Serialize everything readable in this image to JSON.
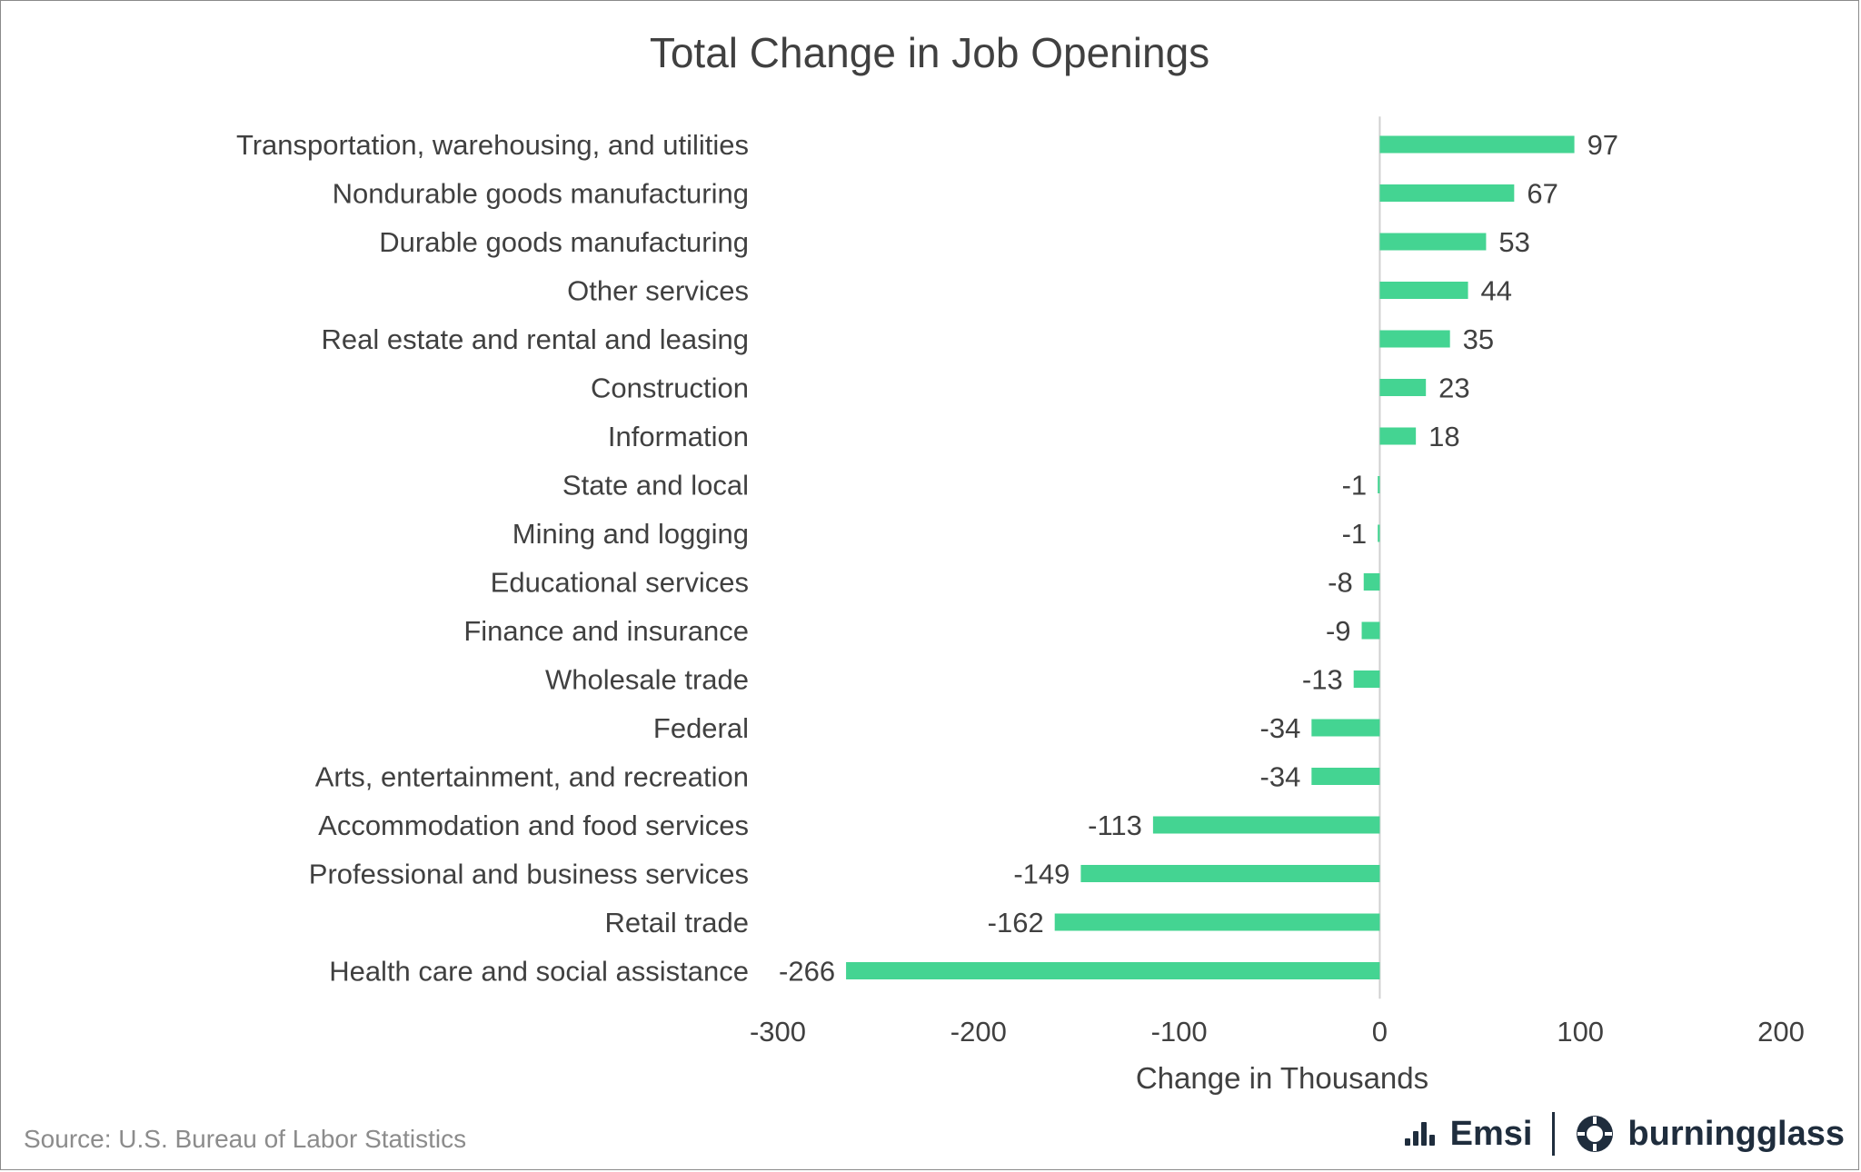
{
  "chart_data": {
    "type": "bar",
    "orientation": "horizontal",
    "title": "Total Change in Job Openings",
    "xlabel": "Change in Thousands",
    "ylabel": "",
    "xlim": [
      -300,
      200
    ],
    "xticks": [
      -300,
      -200,
      -100,
      0,
      100,
      200
    ],
    "grid": false,
    "bar_color": "#44d492",
    "categories": [
      "Transportation, warehousing, and utilities",
      "Nondurable goods manufacturing",
      "Durable goods manufacturing",
      "Other services",
      "Real estate and rental and leasing",
      "Construction",
      "Information",
      "State and local",
      "Mining and logging",
      "Educational services",
      "Finance and insurance",
      "Wholesale trade",
      "Federal",
      "Arts, entertainment, and recreation",
      "Accommodation and food services",
      "Professional and business services",
      "Retail trade",
      "Health care and social assistance"
    ],
    "values": [
      97,
      67,
      53,
      44,
      35,
      23,
      18,
      -1,
      -1,
      -8,
      -9,
      -13,
      -34,
      -34,
      -113,
      -149,
      -162,
      -266
    ]
  },
  "footer": {
    "source": "Source:  U.S. Bureau of Labor Statistics",
    "logos": {
      "emsi": "Emsi",
      "burningglass": "burningglass"
    }
  }
}
